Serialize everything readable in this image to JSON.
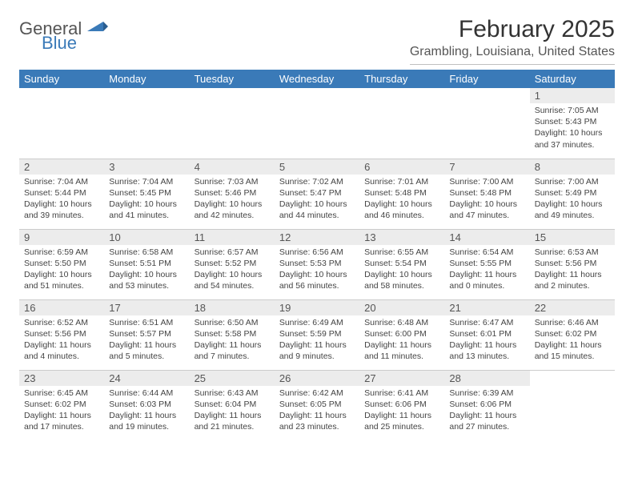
{
  "logo": {
    "word1": "General",
    "word2": "Blue"
  },
  "header": {
    "title": "February 2025",
    "location": "Grambling, Louisiana, United States"
  },
  "colors": {
    "header_bg": "#3a7ab8",
    "header_fg": "#ffffff",
    "daynum_bg": "#ececec",
    "border": "#cccccc"
  },
  "dayNames": [
    "Sunday",
    "Monday",
    "Tuesday",
    "Wednesday",
    "Thursday",
    "Friday",
    "Saturday"
  ],
  "weeks": [
    [
      null,
      null,
      null,
      null,
      null,
      null,
      {
        "n": "1",
        "sunrise": "7:05 AM",
        "sunset": "5:43 PM",
        "daylight": "10 hours and 37 minutes."
      }
    ],
    [
      {
        "n": "2",
        "sunrise": "7:04 AM",
        "sunset": "5:44 PM",
        "daylight": "10 hours and 39 minutes."
      },
      {
        "n": "3",
        "sunrise": "7:04 AM",
        "sunset": "5:45 PM",
        "daylight": "10 hours and 41 minutes."
      },
      {
        "n": "4",
        "sunrise": "7:03 AM",
        "sunset": "5:46 PM",
        "daylight": "10 hours and 42 minutes."
      },
      {
        "n": "5",
        "sunrise": "7:02 AM",
        "sunset": "5:47 PM",
        "daylight": "10 hours and 44 minutes."
      },
      {
        "n": "6",
        "sunrise": "7:01 AM",
        "sunset": "5:48 PM",
        "daylight": "10 hours and 46 minutes."
      },
      {
        "n": "7",
        "sunrise": "7:00 AM",
        "sunset": "5:48 PM",
        "daylight": "10 hours and 47 minutes."
      },
      {
        "n": "8",
        "sunrise": "7:00 AM",
        "sunset": "5:49 PM",
        "daylight": "10 hours and 49 minutes."
      }
    ],
    [
      {
        "n": "9",
        "sunrise": "6:59 AM",
        "sunset": "5:50 PM",
        "daylight": "10 hours and 51 minutes."
      },
      {
        "n": "10",
        "sunrise": "6:58 AM",
        "sunset": "5:51 PM",
        "daylight": "10 hours and 53 minutes."
      },
      {
        "n": "11",
        "sunrise": "6:57 AM",
        "sunset": "5:52 PM",
        "daylight": "10 hours and 54 minutes."
      },
      {
        "n": "12",
        "sunrise": "6:56 AM",
        "sunset": "5:53 PM",
        "daylight": "10 hours and 56 minutes."
      },
      {
        "n": "13",
        "sunrise": "6:55 AM",
        "sunset": "5:54 PM",
        "daylight": "10 hours and 58 minutes."
      },
      {
        "n": "14",
        "sunrise": "6:54 AM",
        "sunset": "5:55 PM",
        "daylight": "11 hours and 0 minutes."
      },
      {
        "n": "15",
        "sunrise": "6:53 AM",
        "sunset": "5:56 PM",
        "daylight": "11 hours and 2 minutes."
      }
    ],
    [
      {
        "n": "16",
        "sunrise": "6:52 AM",
        "sunset": "5:56 PM",
        "daylight": "11 hours and 4 minutes."
      },
      {
        "n": "17",
        "sunrise": "6:51 AM",
        "sunset": "5:57 PM",
        "daylight": "11 hours and 5 minutes."
      },
      {
        "n": "18",
        "sunrise": "6:50 AM",
        "sunset": "5:58 PM",
        "daylight": "11 hours and 7 minutes."
      },
      {
        "n": "19",
        "sunrise": "6:49 AM",
        "sunset": "5:59 PM",
        "daylight": "11 hours and 9 minutes."
      },
      {
        "n": "20",
        "sunrise": "6:48 AM",
        "sunset": "6:00 PM",
        "daylight": "11 hours and 11 minutes."
      },
      {
        "n": "21",
        "sunrise": "6:47 AM",
        "sunset": "6:01 PM",
        "daylight": "11 hours and 13 minutes."
      },
      {
        "n": "22",
        "sunrise": "6:46 AM",
        "sunset": "6:02 PM",
        "daylight": "11 hours and 15 minutes."
      }
    ],
    [
      {
        "n": "23",
        "sunrise": "6:45 AM",
        "sunset": "6:02 PM",
        "daylight": "11 hours and 17 minutes."
      },
      {
        "n": "24",
        "sunrise": "6:44 AM",
        "sunset": "6:03 PM",
        "daylight": "11 hours and 19 minutes."
      },
      {
        "n": "25",
        "sunrise": "6:43 AM",
        "sunset": "6:04 PM",
        "daylight": "11 hours and 21 minutes."
      },
      {
        "n": "26",
        "sunrise": "6:42 AM",
        "sunset": "6:05 PM",
        "daylight": "11 hours and 23 minutes."
      },
      {
        "n": "27",
        "sunrise": "6:41 AM",
        "sunset": "6:06 PM",
        "daylight": "11 hours and 25 minutes."
      },
      {
        "n": "28",
        "sunrise": "6:39 AM",
        "sunset": "6:06 PM",
        "daylight": "11 hours and 27 minutes."
      },
      null
    ]
  ],
  "labels": {
    "sunrise": "Sunrise:",
    "sunset": "Sunset:",
    "daylight": "Daylight:"
  }
}
